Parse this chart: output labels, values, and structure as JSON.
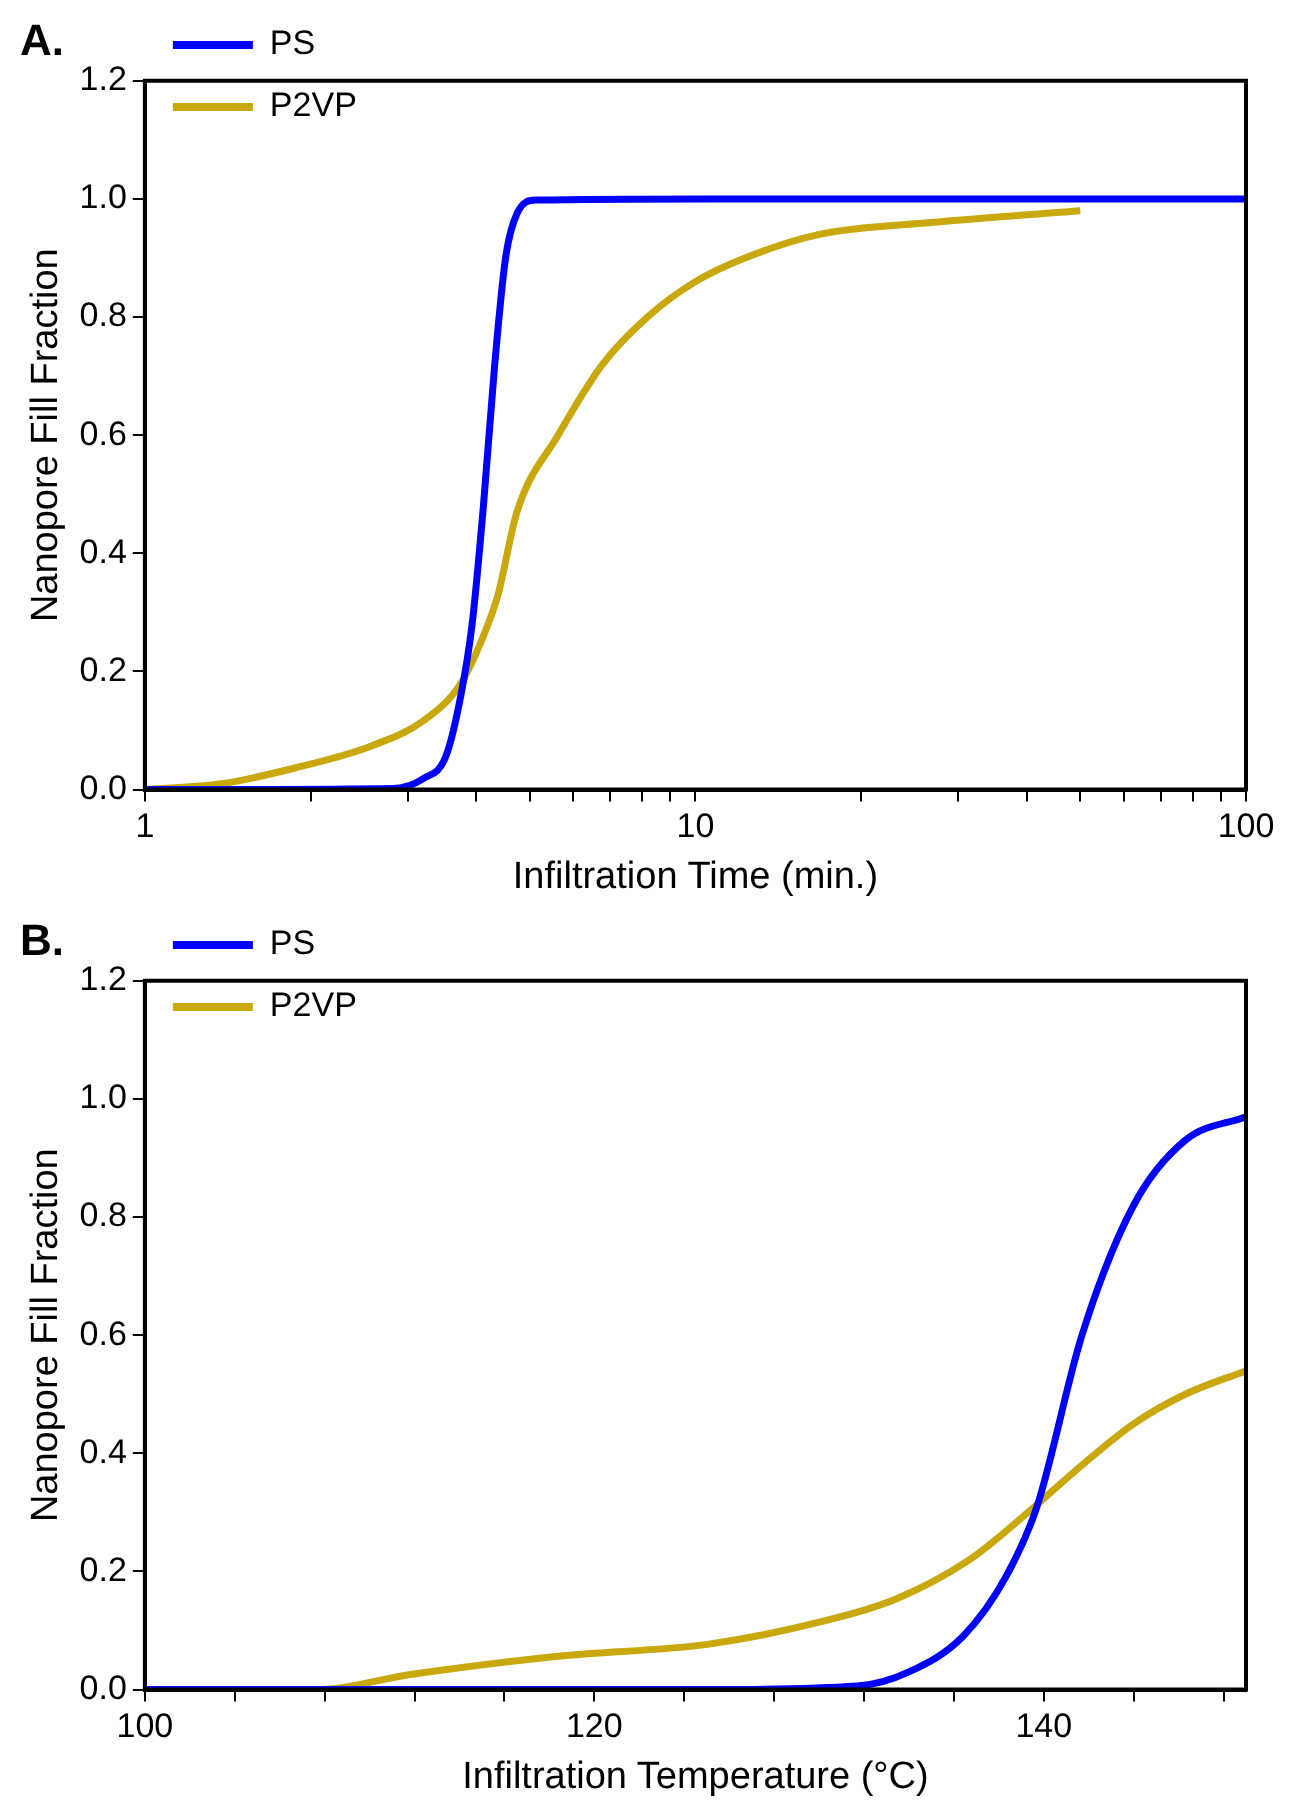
{
  "chart_data": [
    {
      "type": "line",
      "title": "A.",
      "xlabel": "Infiltration Time (min.)",
      "ylabel": "Nanopore Fill Fraction",
      "log": "x",
      "grid": false,
      "legend": "top left",
      "marker": "none",
      "line_style": "solid",
      "xlim": [
        1,
        100
      ],
      "xticks": [
        1,
        {
          "value": 2,
          "label": null
        },
        {
          "value": 3,
          "label": null
        },
        {
          "value": 4,
          "label": null
        },
        {
          "value": 5,
          "label": null
        },
        {
          "value": 6,
          "label": null
        },
        {
          "value": 7,
          "label": null
        },
        {
          "value": 8,
          "label": null
        },
        {
          "value": 9,
          "label": null
        },
        10,
        {
          "value": 20,
          "label": null
        },
        {
          "value": 30,
          "label": null
        },
        {
          "value": 40,
          "label": null
        },
        {
          "value": 50,
          "label": null
        },
        {
          "value": 60,
          "label": null
        },
        {
          "value": 70,
          "label": null
        },
        {
          "value": 80,
          "label": null
        },
        {
          "value": 90,
          "label": null
        },
        100
      ],
      "ylim": [
        0,
        1.2
      ],
      "yticks": [
        {
          "value": 0,
          "label": "0.0"
        },
        {
          "value": 0.2,
          "label": "0.2"
        },
        {
          "value": 0.4,
          "label": "0.4"
        },
        {
          "value": 0.6,
          "label": "0.6"
        },
        {
          "value": 0.8,
          "label": "0.8"
        },
        {
          "value": 1,
          "label": "1.0"
        },
        {
          "value": 1.2,
          "label": "1.2"
        }
      ],
      "series": [
        {
          "name": "PS",
          "color": "#0000ff",
          "x": [
            1,
            2.83,
            3.21,
            3.52,
            3.75,
            3.93,
            4.12,
            4.32,
            4.52,
            4.74,
            5.12,
            10.5,
            100
          ],
          "values": [
            0,
            0.002,
            0.019,
            0.056,
            0.16,
            0.28,
            0.48,
            0.72,
            0.9,
            0.975,
            0.998,
            1.0,
            1.0
          ]
        },
        {
          "name": "P2VP",
          "color": "#c8a80c",
          "x": [
            1,
            1.38,
            1.88,
            2.58,
            3.21,
            3.75,
            4.12,
            4.38,
            4.74,
            5.63,
            6.78,
            8.18,
            10,
            12.3,
            16.8,
            26.8,
            50
          ],
          "values": [
            0,
            0.01,
            0.037,
            0.074,
            0.117,
            0.18,
            0.26,
            0.33,
            0.47,
            0.6,
            0.72,
            0.8,
            0.86,
            0.9,
            0.94,
            0.96,
            0.98
          ]
        }
      ]
    },
    {
      "type": "line",
      "title": "B.",
      "xlabel": "Infiltration Temperature (°C)",
      "ylabel": "Nanopore Fill Fraction",
      "grid": false,
      "legend": "top left",
      "marker": "none",
      "line_style": "solid",
      "xlim": [
        100,
        149
      ],
      "xticks": [
        100,
        {
          "value": 104,
          "label": null
        },
        {
          "value": 108,
          "label": null
        },
        {
          "value": 112,
          "label": null
        },
        {
          "value": 116,
          "label": null
        },
        120,
        {
          "value": 124,
          "label": null
        },
        {
          "value": 128,
          "label": null
        },
        {
          "value": 132,
          "label": null
        },
        {
          "value": 136,
          "label": null
        },
        140,
        {
          "value": 144,
          "label": null
        },
        {
          "value": 148,
          "label": null
        }
      ],
      "ylim": [
        0,
        1.2
      ],
      "yticks": [
        {
          "value": 0,
          "label": "0.0"
        },
        {
          "value": 0.2,
          "label": "0.2"
        },
        {
          "value": 0.4,
          "label": "0.4"
        },
        {
          "value": 0.6,
          "label": "0.6"
        },
        {
          "value": 0.8,
          "label": "0.8"
        },
        {
          "value": 1,
          "label": "1.0"
        },
        {
          "value": 1.2,
          "label": "1.2"
        }
      ],
      "series": [
        {
          "name": "PS",
          "color": "#0000ff",
          "x": [
            100,
            125,
            131.7,
            134,
            136.4,
            138.3,
            139.7,
            141.7,
            144,
            146.3,
            149
          ],
          "values": [
            0,
            0,
            0.006,
            0.03,
            0.09,
            0.19,
            0.31,
            0.6,
            0.82,
            0.93,
            0.97
          ]
        },
        {
          "name": "P2VP",
          "color": "#c8a80c",
          "x": [
            100,
            107.6,
            111.9,
            118.5,
            125.1,
            130.1,
            133.4,
            136.7,
            139.3,
            141.7,
            144,
            146.3,
            149
          ],
          "values": [
            0,
            0,
            0.026,
            0.057,
            0.077,
            0.115,
            0.153,
            0.22,
            0.3,
            0.38,
            0.45,
            0.5,
            0.54
          ]
        }
      ]
    }
  ]
}
